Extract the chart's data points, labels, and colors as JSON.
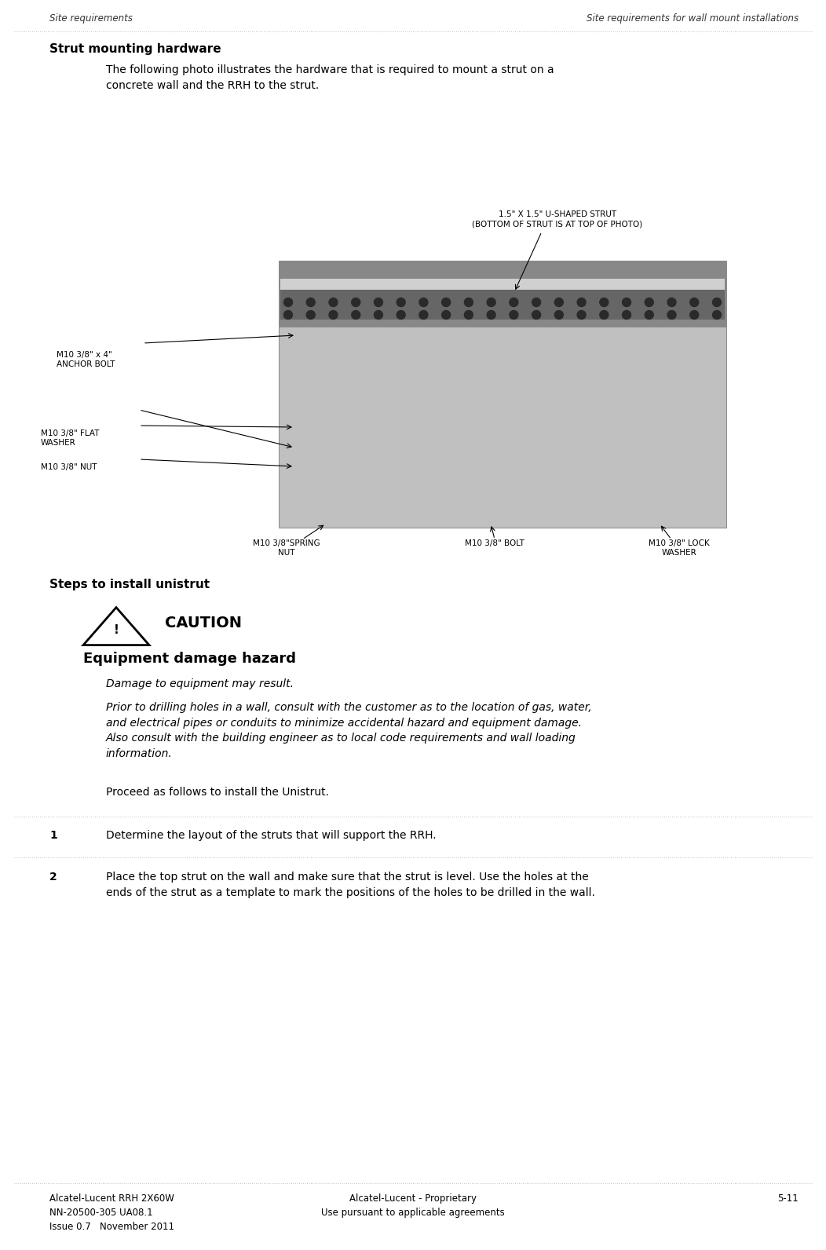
{
  "page_width": 10.52,
  "page_height": 15.92,
  "bg_color": "#ffffff",
  "header_left": "Site requirements",
  "header_right": "Site requirements for wall mount installations",
  "header_font_size": 8.5,
  "section_title": "Strut mounting hardware",
  "section_title_font_size": 11,
  "body_text_1": "The following photo illustrates the hardware that is required to mount a strut on a\nconcrete wall and the RRH to the strut.",
  "body_text_1_font_size": 10,
  "photo_label_strut": "1.5\" X 1.5\" U-SHAPED STRUT\n(BOTTOM OF STRUT IS AT TOP OF PHOTO)",
  "photo_label_anchor": "M10 3/8\" x 4\"\nANCHOR BOLT",
  "photo_label_flat_washer": "M10 3/8\" FLAT\nWASHER",
  "photo_label_nut": "M10 3/8\" NUT",
  "photo_label_spring_nut": "M10 3/8\"SPRING\nNUT",
  "photo_label_bolt": "M10 3/8\" BOLT",
  "photo_label_lock_washer": "M10 3/8\" LOCK\nWASHER",
  "photo_label_font_size": 7.5,
  "steps_title": "Steps to install unistrut",
  "steps_title_font_size": 11,
  "caution_title": "CAUTION",
  "caution_subtitle": "Equipment damage hazard",
  "caution_title_font_size": 14,
  "caution_subtitle_font_size": 13,
  "caution_italic_text_1": "Damage to equipment may result.",
  "caution_italic_text_2": "Prior to drilling holes in a wall, consult with the customer as to the location of gas, water,\nand electrical pipes or conduits to minimize accidental hazard and equipment damage.\nAlso consult with the building engineer as to local code requirements and wall loading\ninformation.",
  "caution_italic_font_size": 10,
  "proceed_text": "Proceed as follows to install the Unistrut.",
  "proceed_font_size": 10,
  "step1_num": "1",
  "step1_text": "Determine the layout of the struts that will support the RRH.",
  "step2_num": "2",
  "step2_text": "Place the top strut on the wall and make sure that the strut is level. Use the holes at the\nends of the strut as a template to mark the positions of the holes to be drilled in the wall.",
  "step_font_size": 10,
  "footer_left_line1": "Alcatel-Lucent RRH 2X60W",
  "footer_left_line2": "NN-20500-305 UA08.1",
  "footer_left_line3": "Issue 0.7   November 2011",
  "footer_center_line1": "Alcatel-Lucent - Proprietary",
  "footer_center_line2": "Use pursuant to applicable agreements",
  "footer_right": "5-11",
  "footer_font_size": 8.5,
  "text_color": "#000000",
  "dotted_color": "#999999",
  "photo_bg": "#c0c0c0",
  "photo_dark": "#888888",
  "photo_darker": "#666666",
  "photo_strut_band": "#777777"
}
